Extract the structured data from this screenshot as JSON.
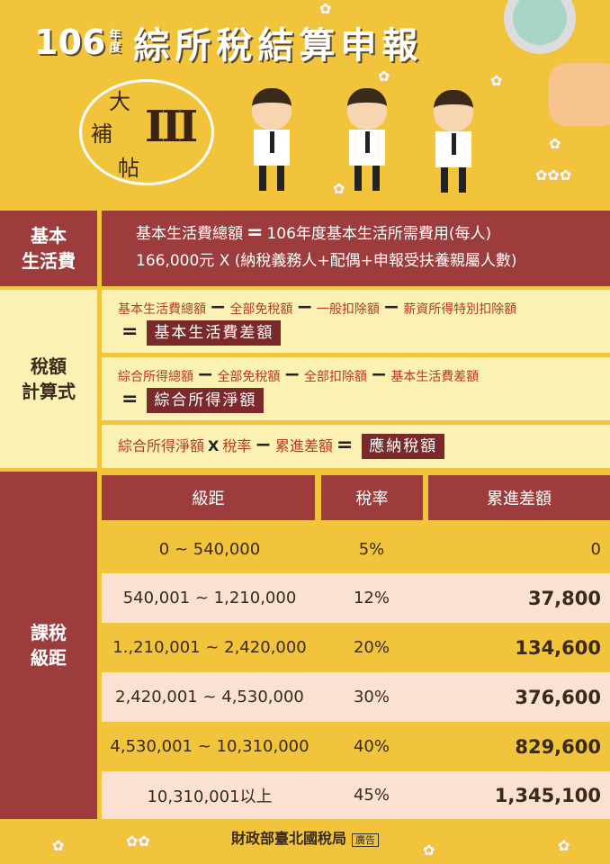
{
  "header": {
    "year": "106",
    "year_unit_1": "年",
    "year_unit_2": "度",
    "title": "綜所稅結算申報",
    "bubble_chars": [
      "大",
      "補",
      "帖"
    ],
    "bubble_roman": "III"
  },
  "basic_living": {
    "label_1": "基本",
    "label_2": "生活費",
    "line1_left": "基本生活費總額",
    "line1_op": "=",
    "line1_right": "106年度基本生活所需費用(每人)",
    "line2": "166,000元 X (納稅義務人+配偶+申報受扶養親屬人數)"
  },
  "tax_formula": {
    "label_1": "稅額",
    "label_2": "計算式",
    "f1": {
      "terms": [
        "基本生活費總額",
        "全部免稅額",
        "一般扣除額",
        "薪資所得特別扣除額"
      ],
      "result": "基本生活費差額"
    },
    "f2": {
      "terms": [
        "綜合所得總額",
        "全部免稅額",
        "全部扣除額",
        "基本生活費差額"
      ],
      "result": "綜合所得淨額"
    },
    "f3": {
      "a": "綜合所得淨額",
      "x": "X",
      "b": "稅率",
      "minus": "−",
      "c": "累進差額",
      "eq": "=",
      "result": "應納稅額"
    },
    "minus": "−",
    "eq": "="
  },
  "brackets": {
    "label_1": "課稅",
    "label_2": "級距",
    "headers": [
      "級距",
      "稅率",
      "累進差額"
    ],
    "rows": [
      {
        "range": "0 ~ 540,000",
        "rate": "5%",
        "diff": "0"
      },
      {
        "range": "540,001 ~ 1,210,000",
        "rate": "12%",
        "diff": "37,800"
      },
      {
        "range": "1.,210,001 ~ 2,420,000",
        "rate": "20%",
        "diff": "134,600"
      },
      {
        "range": "2,420,001 ~ 4,530,000",
        "rate": "30%",
        "diff": "376,600"
      },
      {
        "range": "4,530,001 ~ 10,310,000",
        "rate": "40%",
        "diff": "829,600"
      },
      {
        "range": "10,310,001以上",
        "rate": "45%",
        "diff": "1,345,100"
      }
    ]
  },
  "footer": {
    "org": "財政部臺北國稅局",
    "ad": "廣告"
  },
  "colors": {
    "background": "#f1c43c",
    "maroon": "#9c3c3c",
    "light_yellow": "#fbf1b3",
    "pink": "#fbe1d2",
    "red_text": "#b83a1e"
  }
}
